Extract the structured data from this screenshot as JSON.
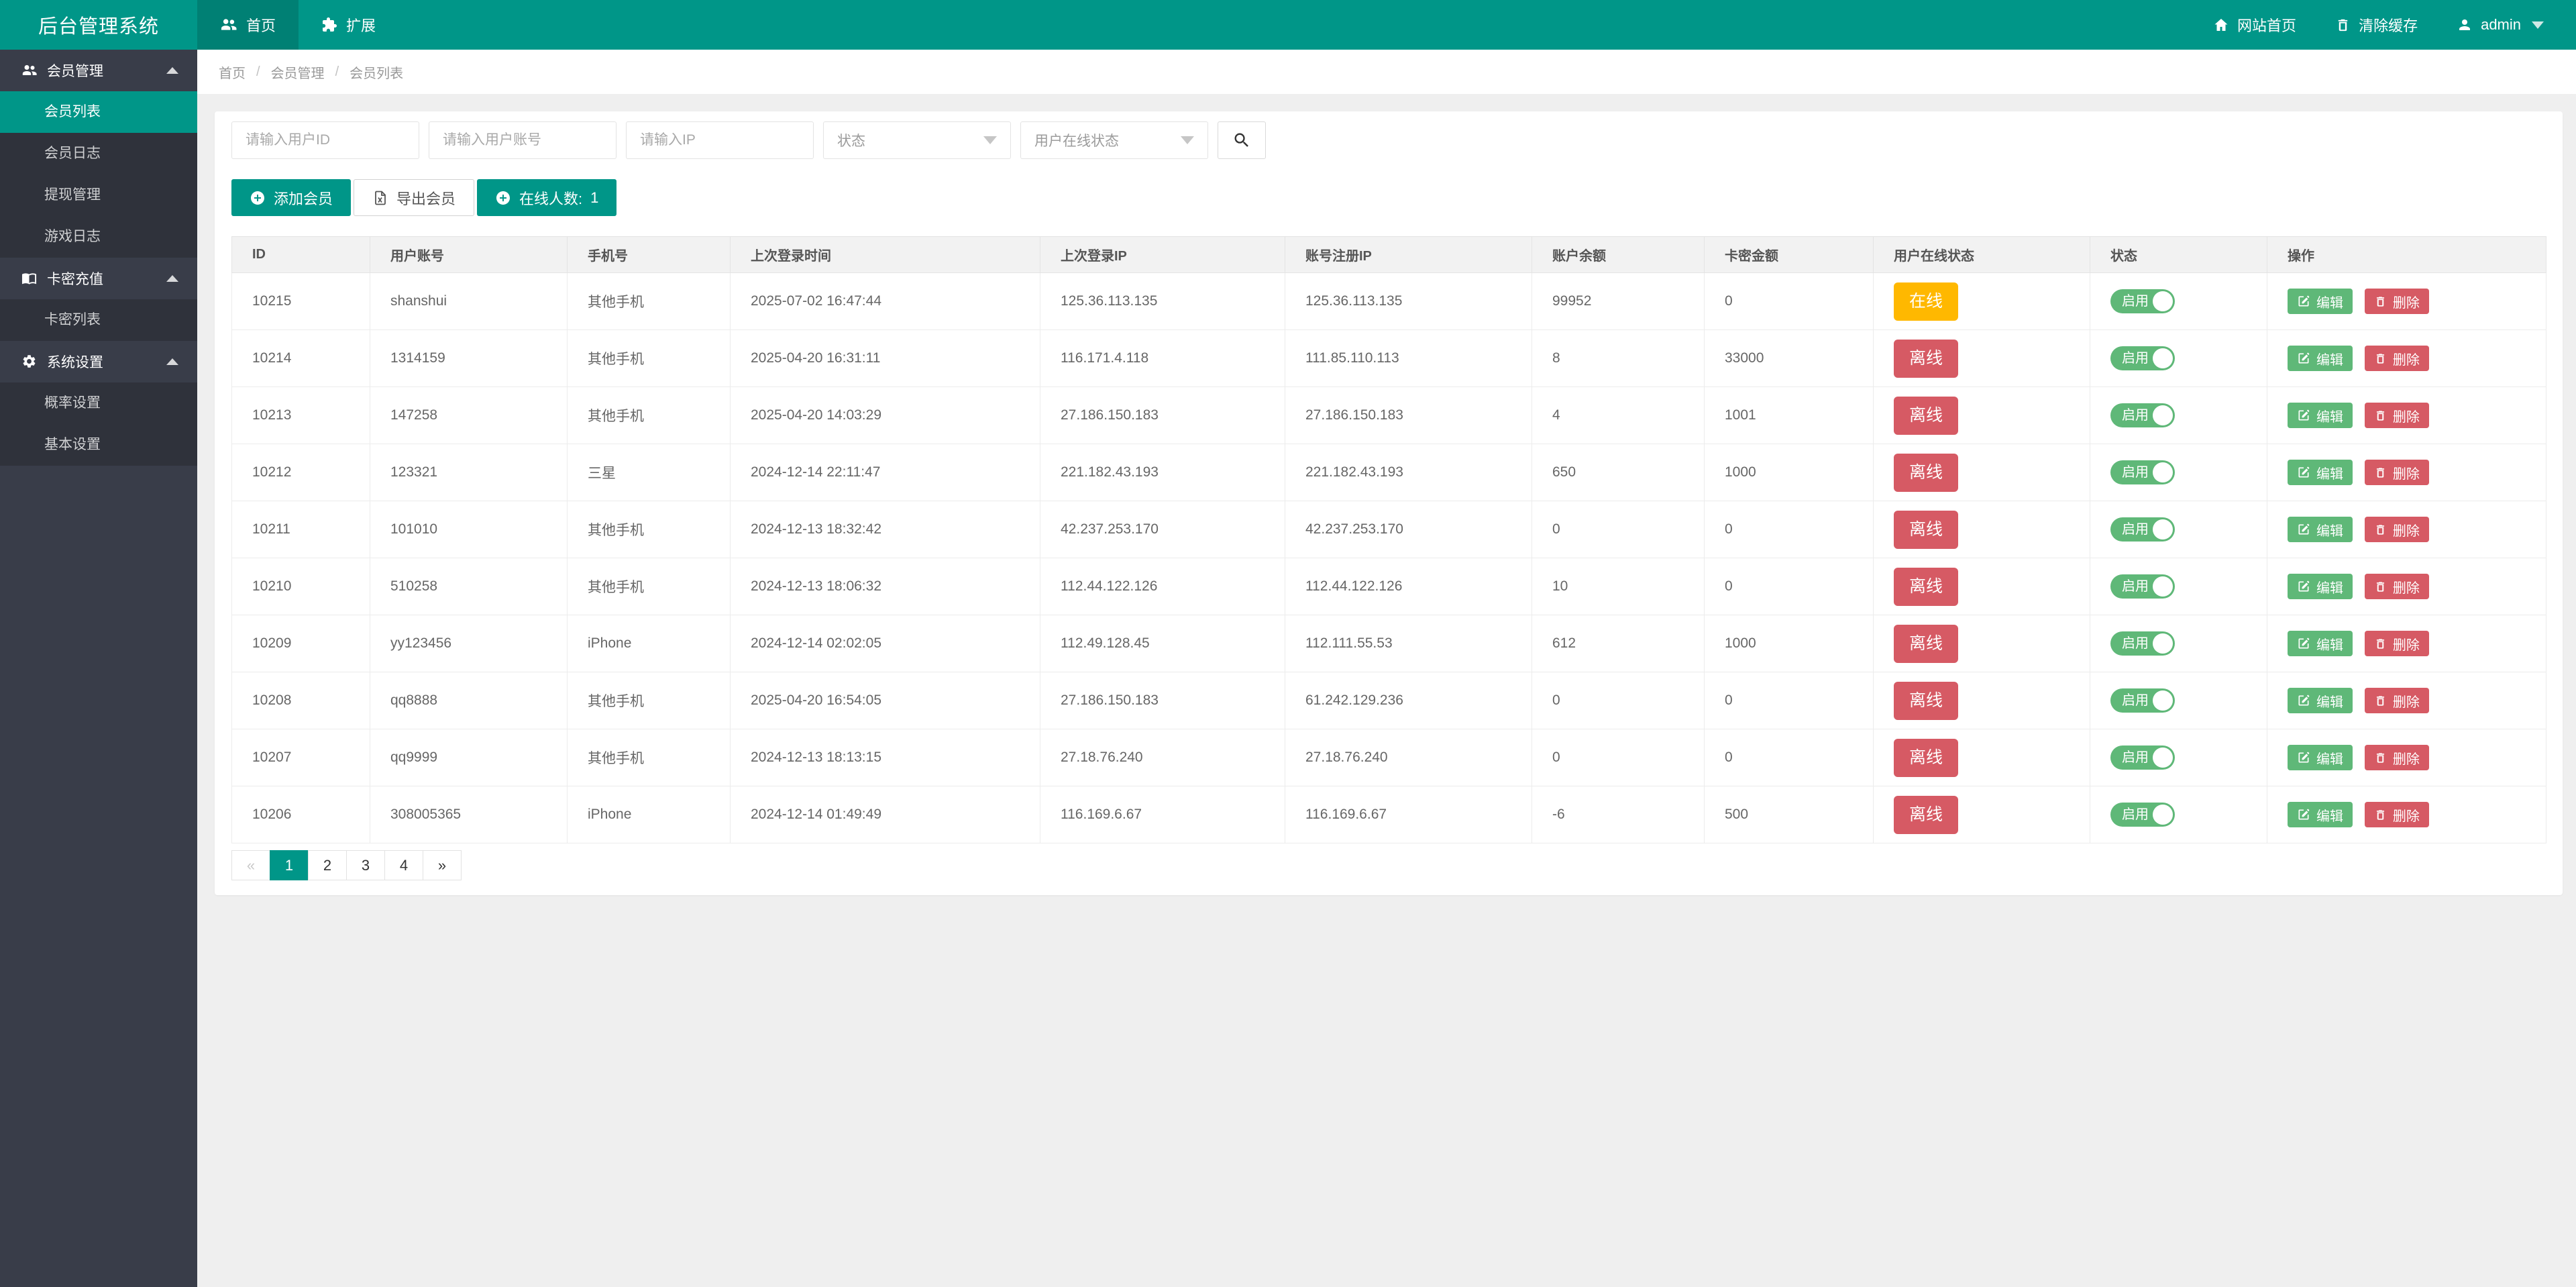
{
  "app": {
    "title": "后台管理系统"
  },
  "navbar": {
    "tabs": [
      {
        "label": "首页",
        "active": true
      },
      {
        "label": "扩展",
        "active": false
      }
    ],
    "right": [
      {
        "label": "网站首页"
      },
      {
        "label": "清除缓存"
      },
      {
        "label": "admin"
      }
    ]
  },
  "sidebar": {
    "groups": [
      {
        "label": "会员管理",
        "items": [
          {
            "label": "会员列表",
            "active": true
          },
          {
            "label": "会员日志",
            "active": false
          },
          {
            "label": "提现管理",
            "active": false
          },
          {
            "label": "游戏日志",
            "active": false
          }
        ]
      },
      {
        "label": "卡密充值",
        "items": [
          {
            "label": "卡密列表",
            "active": false
          }
        ]
      },
      {
        "label": "系统设置",
        "items": [
          {
            "label": "概率设置",
            "active": false
          },
          {
            "label": "基本设置",
            "active": false
          }
        ]
      }
    ]
  },
  "breadcrumb": {
    "items": [
      "首页",
      "会员管理",
      "会员列表"
    ],
    "separator": "/"
  },
  "filters": {
    "user_id_placeholder": "请输入用户ID",
    "account_placeholder": "请输入用户账号",
    "ip_placeholder": "请输入IP",
    "status_select": "状态",
    "online_select": "用户在线状态"
  },
  "toolbar": {
    "add_label": "添加会员",
    "export_label": "导出会员",
    "online_count_label": "在线人数:",
    "online_count": "1"
  },
  "table": {
    "columns": [
      "ID",
      "用户账号",
      "手机号",
      "上次登录时间",
      "上次登录IP",
      "账号注册IP",
      "账户余额",
      "卡密金额",
      "用户在线状态",
      "状态",
      "操作"
    ],
    "switch_label": "启用",
    "actions": {
      "edit": "编辑",
      "delete": "删除"
    },
    "rows": [
      {
        "id": "10215",
        "account": "shanshui",
        "phone": "其他手机",
        "last_login_time": "2025-07-02 16:47:44",
        "last_login_ip": "125.36.113.135",
        "register_ip": "125.36.113.135",
        "balance": "99952",
        "card_amount": "0",
        "online_status": "在线",
        "online": true,
        "status_label": "启用",
        "status_on": true
      },
      {
        "id": "10214",
        "account": "1314159",
        "phone": "其他手机",
        "last_login_time": "2025-04-20 16:31:11",
        "last_login_ip": "116.171.4.118",
        "register_ip": "111.85.110.113",
        "balance": "8",
        "card_amount": "33000",
        "online_status": "离线",
        "online": false,
        "status_label": "启用",
        "status_on": true
      },
      {
        "id": "10213",
        "account": "147258",
        "phone": "其他手机",
        "last_login_time": "2025-04-20 14:03:29",
        "last_login_ip": "27.186.150.183",
        "register_ip": "27.186.150.183",
        "balance": "4",
        "card_amount": "1001",
        "online_status": "离线",
        "online": false,
        "status_label": "启用",
        "status_on": true
      },
      {
        "id": "10212",
        "account": "123321",
        "phone": "三星",
        "last_login_time": "2024-12-14 22:11:47",
        "last_login_ip": "221.182.43.193",
        "register_ip": "221.182.43.193",
        "balance": "650",
        "card_amount": "1000",
        "online_status": "离线",
        "online": false,
        "status_label": "启用",
        "status_on": true
      },
      {
        "id": "10211",
        "account": "101010",
        "phone": "其他手机",
        "last_login_time": "2024-12-13 18:32:42",
        "last_login_ip": "42.237.253.170",
        "register_ip": "42.237.253.170",
        "balance": "0",
        "card_amount": "0",
        "online_status": "离线",
        "online": false,
        "status_label": "启用",
        "status_on": true
      },
      {
        "id": "10210",
        "account": "510258",
        "phone": "其他手机",
        "last_login_time": "2024-12-13 18:06:32",
        "last_login_ip": "112.44.122.126",
        "register_ip": "112.44.122.126",
        "balance": "10",
        "card_amount": "0",
        "online_status": "离线",
        "online": false,
        "status_label": "启用",
        "status_on": true
      },
      {
        "id": "10209",
        "account": "yy123456",
        "phone": "iPhone",
        "last_login_time": "2024-12-14 02:02:05",
        "last_login_ip": "112.49.128.45",
        "register_ip": "112.111.55.53",
        "balance": "612",
        "card_amount": "1000",
        "online_status": "离线",
        "online": false,
        "status_label": "启用",
        "status_on": true
      },
      {
        "id": "10208",
        "account": "qq8888",
        "phone": "其他手机",
        "last_login_time": "2025-04-20 16:54:05",
        "last_login_ip": "27.186.150.183",
        "register_ip": "61.242.129.236",
        "balance": "0",
        "card_amount": "0",
        "online_status": "离线",
        "online": false,
        "status_label": "启用",
        "status_on": true
      },
      {
        "id": "10207",
        "account": "qq9999",
        "phone": "其他手机",
        "last_login_time": "2024-12-13 18:13:15",
        "last_login_ip": "27.18.76.240",
        "register_ip": "27.18.76.240",
        "balance": "0",
        "card_amount": "0",
        "online_status": "离线",
        "online": false,
        "status_label": "启用",
        "status_on": true
      },
      {
        "id": "10206",
        "account": "308005365",
        "phone": "iPhone",
        "last_login_time": "2024-12-14 01:49:49",
        "last_login_ip": "116.169.6.67",
        "register_ip": "116.169.6.67",
        "balance": "-6",
        "card_amount": "500",
        "online_status": "离线",
        "online": false,
        "status_label": "启用",
        "status_on": true
      }
    ]
  },
  "pagination": {
    "pages": [
      {
        "label": "«",
        "state": "disabled"
      },
      {
        "label": "1",
        "state": "active"
      },
      {
        "label": "2",
        "state": ""
      },
      {
        "label": "3",
        "state": ""
      },
      {
        "label": "4",
        "state": ""
      },
      {
        "label": "»",
        "state": ""
      }
    ]
  },
  "colors": {
    "accent": "#009688",
    "sidebar": "#393D49",
    "green": "#5FB878",
    "red": "#D65A64",
    "orange": "#FFB800",
    "page_background": "#efefef"
  }
}
